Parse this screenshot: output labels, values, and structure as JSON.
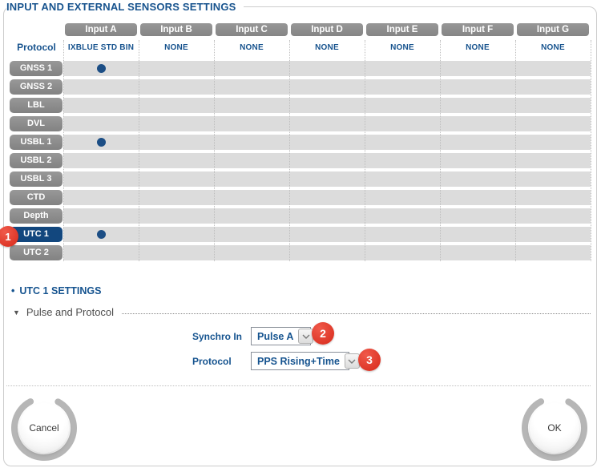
{
  "title": "INPUT AND EXTERNAL SENSORS SETTINGS",
  "table": {
    "protocol_header": "Protocol",
    "columns": [
      {
        "label": "Input A",
        "protocol": "IXBLUE STD BIN"
      },
      {
        "label": "Input B",
        "protocol": "NONE"
      },
      {
        "label": "Input C",
        "protocol": "NONE"
      },
      {
        "label": "Input D",
        "protocol": "NONE"
      },
      {
        "label": "Input E",
        "protocol": "NONE"
      },
      {
        "label": "Input F",
        "protocol": "NONE"
      },
      {
        "label": "Input G",
        "protocol": "NONE"
      }
    ],
    "rows": [
      {
        "label": "GNSS 1",
        "selected_input": "Input A",
        "active": false
      },
      {
        "label": "GNSS 2",
        "selected_input": null,
        "active": false
      },
      {
        "label": "LBL",
        "selected_input": null,
        "active": false
      },
      {
        "label": "DVL",
        "selected_input": null,
        "active": false
      },
      {
        "label": "USBL 1",
        "selected_input": "Input A",
        "active": false
      },
      {
        "label": "USBL 2",
        "selected_input": null,
        "active": false
      },
      {
        "label": "USBL 3",
        "selected_input": null,
        "active": false
      },
      {
        "label": "CTD",
        "selected_input": null,
        "active": false
      },
      {
        "label": "Depth",
        "selected_input": null,
        "active": false
      },
      {
        "label": "UTC 1",
        "selected_input": "Input A",
        "active": true
      },
      {
        "label": "UTC 2",
        "selected_input": null,
        "active": false
      }
    ]
  },
  "settings": {
    "section_bullet": "•",
    "section_title": "UTC 1 SETTINGS",
    "group_arrow": "▼",
    "group_title": "Pulse and Protocol",
    "fields": [
      {
        "label": "Synchro In",
        "value": "Pulse A"
      },
      {
        "label": "Protocol",
        "value": "PPS Rising+Time"
      }
    ]
  },
  "badges": [
    {
      "label": "1"
    },
    {
      "label": "2"
    },
    {
      "label": "3"
    }
  ],
  "buttons": {
    "cancel": "Cancel",
    "ok": "OK"
  },
  "colors": {
    "accent_blue": "#15538f",
    "selected_row_blue": "#12477e",
    "dot_blue": "#1c4e85",
    "badge_red": "#dd3526",
    "button_gray": "#8c8c8c",
    "stripe_gray": "#dcdcdc"
  }
}
